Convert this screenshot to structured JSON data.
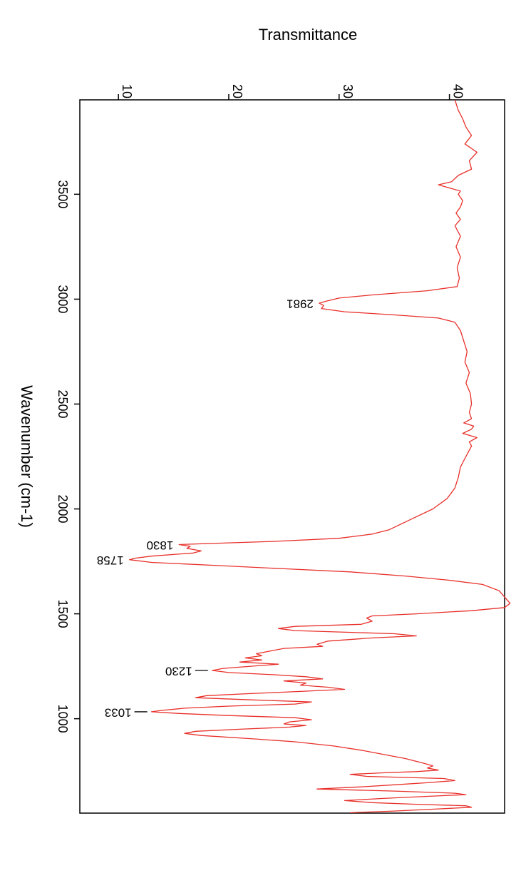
{
  "chart_data": {
    "type": "line",
    "title": "",
    "xlabel": "Wavenumber (cm-1)",
    "ylabel": "Transmittance",
    "xlim": [
      3950,
      550
    ],
    "ylim": [
      6.5,
      45
    ],
    "x_ticks": [
      "3500",
      "3000",
      "2500",
      "2000",
      "1500",
      "1000"
    ],
    "y_ticks": [
      "10",
      "20",
      "30",
      "40"
    ],
    "grid": false,
    "line_color": "#e8302a",
    "series": [
      {
        "values": [
          [
            3950,
            40.5
          ],
          [
            3900,
            40.8
          ],
          [
            3860,
            41.2
          ],
          [
            3820,
            41.5
          ],
          [
            3780,
            42.0
          ],
          [
            3740,
            41.4
          ],
          [
            3700,
            42.5
          ],
          [
            3660,
            41.8
          ],
          [
            3620,
            42.0
          ],
          [
            3590,
            40.8
          ],
          [
            3560,
            40.2
          ],
          [
            3545,
            39.0
          ],
          [
            3530,
            40.0
          ],
          [
            3515,
            41.0
          ],
          [
            3500,
            40.8
          ],
          [
            3470,
            41.2
          ],
          [
            3440,
            41.0
          ],
          [
            3410,
            40.6
          ],
          [
            3380,
            41.0
          ],
          [
            3350,
            40.5
          ],
          [
            3300,
            41.0
          ],
          [
            3250,
            40.6
          ],
          [
            3200,
            41.0
          ],
          [
            3150,
            40.7
          ],
          [
            3100,
            40.9
          ],
          [
            3060,
            40.7
          ],
          [
            3040,
            38.0
          ],
          [
            3020,
            33.0
          ],
          [
            3005,
            30.0
          ],
          [
            2990,
            28.8
          ],
          [
            2981,
            28.2
          ],
          [
            2970,
            28.6
          ],
          [
            2955,
            28.4
          ],
          [
            2940,
            30.5
          ],
          [
            2925,
            35.0
          ],
          [
            2910,
            39.0
          ],
          [
            2890,
            40.5
          ],
          [
            2850,
            41.0
          ],
          [
            2800,
            41.3
          ],
          [
            2750,
            41.6
          ],
          [
            2700,
            41.4
          ],
          [
            2650,
            41.8
          ],
          [
            2600,
            41.5
          ],
          [
            2550,
            41.9
          ],
          [
            2500,
            42.0
          ],
          [
            2460,
            41.8
          ],
          [
            2430,
            42.0
          ],
          [
            2410,
            41.3
          ],
          [
            2395,
            42.2
          ],
          [
            2380,
            42.0
          ],
          [
            2360,
            41.2
          ],
          [
            2340,
            42.5
          ],
          [
            2320,
            41.8
          ],
          [
            2300,
            42.0
          ],
          [
            2250,
            41.5
          ],
          [
            2200,
            41.0
          ],
          [
            2150,
            40.8
          ],
          [
            2100,
            40.5
          ],
          [
            2050,
            39.8
          ],
          [
            2000,
            38.5
          ],
          [
            1950,
            36.5
          ],
          [
            1900,
            34.5
          ],
          [
            1880,
            33.0
          ],
          [
            1860,
            30.0
          ],
          [
            1845,
            24.0
          ],
          [
            1835,
            18.0
          ],
          [
            1830,
            15.5
          ],
          [
            1822,
            16.5
          ],
          [
            1812,
            16.2
          ],
          [
            1800,
            17.5
          ],
          [
            1790,
            16.8
          ],
          [
            1775,
            13.0
          ],
          [
            1765,
            11.5
          ],
          [
            1758,
            11.0
          ],
          [
            1745,
            13.0
          ],
          [
            1730,
            19.0
          ],
          [
            1715,
            25.0
          ],
          [
            1700,
            31.0
          ],
          [
            1680,
            36.0
          ],
          [
            1660,
            40.0
          ],
          [
            1640,
            43.0
          ],
          [
            1610,
            44.5
          ],
          [
            1580,
            45.0
          ],
          [
            1550,
            45.5
          ],
          [
            1530,
            45.0
          ],
          [
            1515,
            42.0
          ],
          [
            1500,
            37.0
          ],
          [
            1490,
            33.0
          ],
          [
            1480,
            32.5
          ],
          [
            1465,
            33.0
          ],
          [
            1450,
            32.0
          ],
          [
            1440,
            26.0
          ],
          [
            1430,
            24.5
          ],
          [
            1420,
            26.0
          ],
          [
            1405,
            35.0
          ],
          [
            1395,
            37.0
          ],
          [
            1385,
            33.0
          ],
          [
            1370,
            29.0
          ],
          [
            1355,
            28.0
          ],
          [
            1345,
            28.5
          ],
          [
            1335,
            25.0
          ],
          [
            1320,
            23.5
          ],
          [
            1310,
            22.5
          ],
          [
            1300,
            23.0
          ],
          [
            1290,
            21.5
          ],
          [
            1280,
            23.0
          ],
          [
            1270,
            21.0
          ],
          [
            1260,
            24.5
          ],
          [
            1250,
            22.0
          ],
          [
            1240,
            19.5
          ],
          [
            1230,
            18.5
          ],
          [
            1220,
            20.0
          ],
          [
            1210,
            24.0
          ],
          [
            1200,
            27.0
          ],
          [
            1190,
            28.5
          ],
          [
            1180,
            25.0
          ],
          [
            1170,
            27.0
          ],
          [
            1160,
            26.5
          ],
          [
            1150,
            29.0
          ],
          [
            1140,
            30.5
          ],
          [
            1130,
            26.5
          ],
          [
            1120,
            22.0
          ],
          [
            1110,
            18.0
          ],
          [
            1100,
            17.0
          ],
          [
            1090,
            22.0
          ],
          [
            1080,
            27.5
          ],
          [
            1070,
            26.0
          ],
          [
            1060,
            20.0
          ],
          [
            1050,
            16.0
          ],
          [
            1040,
            14.0
          ],
          [
            1033,
            13.0
          ],
          [
            1025,
            15.5
          ],
          [
            1015,
            20.0
          ],
          [
            1005,
            26.0
          ],
          [
            995,
            27.5
          ],
          [
            985,
            25.5
          ],
          [
            975,
            25.0
          ],
          [
            968,
            27.0
          ],
          [
            960,
            25.5
          ],
          [
            950,
            21.0
          ],
          [
            940,
            17.0
          ],
          [
            930,
            16.0
          ],
          [
            920,
            17.5
          ],
          [
            905,
            22.0
          ],
          [
            890,
            26.0
          ],
          [
            870,
            29.5
          ],
          [
            850,
            32.0
          ],
          [
            830,
            34.0
          ],
          [
            810,
            36.0
          ],
          [
            790,
            37.5
          ],
          [
            775,
            38.5
          ],
          [
            765,
            38.0
          ],
          [
            755,
            39.0
          ],
          [
            748,
            37.0
          ],
          [
            742,
            34.0
          ],
          [
            735,
            31.0
          ],
          [
            725,
            32.5
          ],
          [
            715,
            39.5
          ],
          [
            705,
            40.5
          ],
          [
            695,
            38.0
          ],
          [
            685,
            35.0
          ],
          [
            675,
            32.0
          ],
          [
            665,
            28.0
          ],
          [
            655,
            35.0
          ],
          [
            645,
            40.5
          ],
          [
            638,
            41.5
          ],
          [
            630,
            38.0
          ],
          [
            620,
            34.0
          ],
          [
            610,
            30.5
          ],
          [
            600,
            33.0
          ],
          [
            592,
            37.0
          ],
          [
            585,
            41.5
          ],
          [
            578,
            42.0
          ],
          [
            570,
            39.0
          ],
          [
            560,
            35.0
          ],
          [
            552,
            31.0
          ]
        ]
      }
    ],
    "annotations": [
      {
        "x": 2981,
        "y": 28.2,
        "label": "2981",
        "leader": false
      },
      {
        "x": 1830,
        "y": 15.5,
        "label": "1830",
        "leader": false
      },
      {
        "x": 1758,
        "y": 11.0,
        "label": "1758",
        "leader": false
      },
      {
        "x": 1230,
        "y": 18.5,
        "label": "1230",
        "leader": true
      },
      {
        "x": 1033,
        "y": 13.0,
        "label": "1033",
        "leader": true
      }
    ]
  }
}
